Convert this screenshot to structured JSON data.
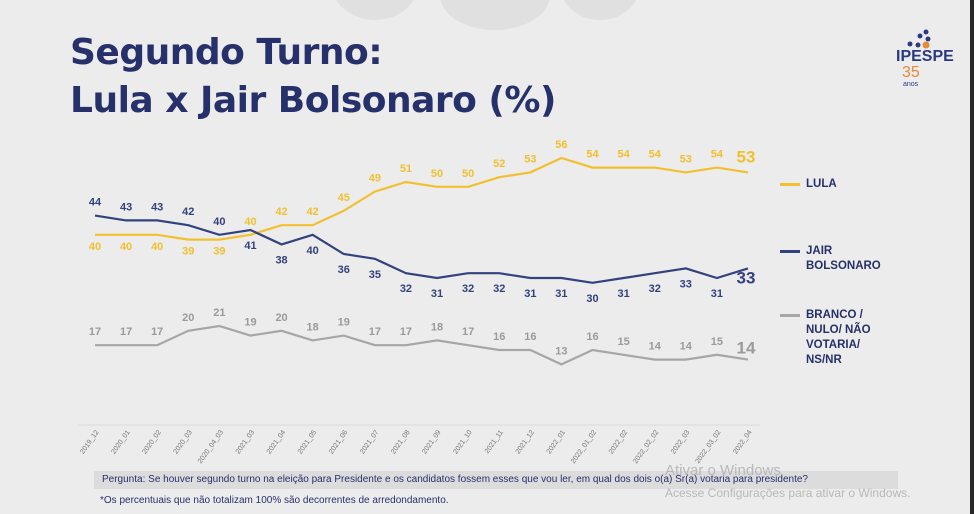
{
  "header": {
    "title_line1": "Segundo Turno:",
    "title_line2": "Lula x Jair Bolsonaro (%)"
  },
  "logo": {
    "name": "IPESPE",
    "years": "35",
    "years_label": "anos"
  },
  "chart_data": {
    "type": "line",
    "title": "Segundo Turno: Lula x Jair Bolsonaro (%)",
    "categories": [
      "2019_12",
      "2020_01",
      "2020_02",
      "2020_03",
      "2020_04_03",
      "2021_03",
      "2021_04",
      "2021_05",
      "2021_06",
      "2021_07",
      "2021_08",
      "2021_09",
      "2021_10",
      "2021_11",
      "2021_12",
      "2022_01",
      "2022_01_02",
      "2022_02",
      "2022_02_02",
      "2022_03",
      "2022_03_02",
      "2022_04"
    ],
    "series": [
      {
        "name": "LULA",
        "color": "#f2c02e",
        "values": [
          40,
          40,
          40,
          39,
          39,
          40,
          42,
          42,
          45,
          49,
          51,
          50,
          50,
          52,
          53,
          56,
          54,
          54,
          54,
          53,
          54,
          53
        ]
      },
      {
        "name": "JAIR BOLSONARO",
        "color": "#33427e",
        "values": [
          44,
          43,
          43,
          42,
          40,
          41,
          38,
          40,
          36,
          35,
          32,
          31,
          32,
          32,
          31,
          31,
          30,
          31,
          32,
          33,
          31,
          33
        ]
      },
      {
        "name": "BRANCO / NULO/ NÃO VOTARIA/ NS/NR",
        "color": "#a6a6a6",
        "values": [
          17,
          17,
          17,
          20,
          21,
          19,
          20,
          18,
          19,
          17,
          17,
          18,
          17,
          16,
          16,
          13,
          16,
          15,
          14,
          14,
          15,
          14
        ]
      }
    ],
    "legend_position": "right",
    "grid": false
  },
  "legend": {
    "lula": "LULA",
    "bolsonaro_1": "JAIR",
    "bolsonaro_2": "BOLSONARO",
    "branco_1": "BRANCO /",
    "branco_2": "NULO/ NÃO",
    "branco_3": "VOTARIA/",
    "branco_4": "NS/NR"
  },
  "footer": {
    "question": "Pergunta:  Se houver segundo turno na eleição para Presidente e os candidatos fossem esses que vou ler, em qual dos dois o(a) Sr(a) votaria para presidente?",
    "note": "*Os percentuais que não totalizam 100% são decorrentes de arredondamento."
  },
  "watermark": {
    "line1": "Ativar o Windows",
    "line2": "Acesse Configurações para ativar o Windows."
  }
}
